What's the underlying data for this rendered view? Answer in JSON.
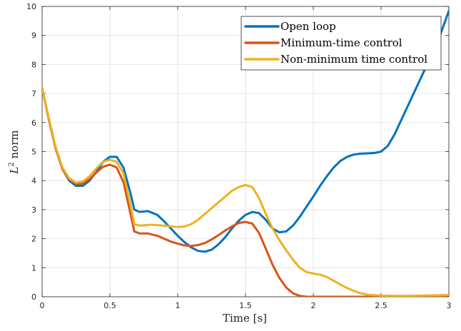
{
  "chart_data": {
    "type": "line",
    "xlabel": "Time [s]",
    "ylabel_main": "L",
    "ylabel_superscript": "2",
    "ylabel_rest": " norm",
    "xlim": [
      0,
      3
    ],
    "ylim": [
      0,
      10
    ],
    "x_ticks": [
      0,
      0.5,
      1,
      1.5,
      2,
      2.5,
      3
    ],
    "x_tick_labels": [
      "0",
      "0.5",
      "1",
      "1.5",
      "2",
      "2.5",
      "3"
    ],
    "y_ticks": [
      0,
      1,
      2,
      3,
      4,
      5,
      6,
      7,
      8,
      9,
      10
    ],
    "y_tick_labels": [
      "0",
      "1",
      "2",
      "3",
      "4",
      "5",
      "6",
      "7",
      "8",
      "9",
      "10"
    ],
    "grid": true,
    "legend_position": "top-right",
    "series": [
      {
        "name": "Open loop",
        "color": "#0072BD",
        "points": [
          [
            0,
            7.2
          ],
          [
            0.05,
            6.1
          ],
          [
            0.1,
            5.1
          ],
          [
            0.15,
            4.4
          ],
          [
            0.2,
            4.0
          ],
          [
            0.25,
            3.82
          ],
          [
            0.3,
            3.82
          ],
          [
            0.35,
            4.0
          ],
          [
            0.4,
            4.3
          ],
          [
            0.45,
            4.65
          ],
          [
            0.5,
            4.82
          ],
          [
            0.55,
            4.82
          ],
          [
            0.6,
            4.45
          ],
          [
            0.65,
            3.6
          ],
          [
            0.68,
            3.0
          ],
          [
            0.72,
            2.92
          ],
          [
            0.78,
            2.95
          ],
          [
            0.85,
            2.82
          ],
          [
            0.9,
            2.6
          ],
          [
            0.95,
            2.35
          ],
          [
            1.0,
            2.1
          ],
          [
            1.05,
            1.88
          ],
          [
            1.1,
            1.7
          ],
          [
            1.15,
            1.58
          ],
          [
            1.2,
            1.55
          ],
          [
            1.25,
            1.62
          ],
          [
            1.3,
            1.8
          ],
          [
            1.35,
            2.05
          ],
          [
            1.4,
            2.35
          ],
          [
            1.45,
            2.62
          ],
          [
            1.5,
            2.82
          ],
          [
            1.55,
            2.92
          ],
          [
            1.6,
            2.88
          ],
          [
            1.65,
            2.65
          ],
          [
            1.7,
            2.35
          ],
          [
            1.75,
            2.22
          ],
          [
            1.8,
            2.25
          ],
          [
            1.85,
            2.45
          ],
          [
            1.9,
            2.75
          ],
          [
            1.95,
            3.1
          ],
          [
            2.0,
            3.45
          ],
          [
            2.05,
            3.82
          ],
          [
            2.1,
            4.15
          ],
          [
            2.15,
            4.45
          ],
          [
            2.2,
            4.68
          ],
          [
            2.25,
            4.82
          ],
          [
            2.3,
            4.9
          ],
          [
            2.35,
            4.93
          ],
          [
            2.4,
            4.94
          ],
          [
            2.45,
            4.95
          ],
          [
            2.5,
            5.0
          ],
          [
            2.55,
            5.2
          ],
          [
            2.6,
            5.6
          ],
          [
            2.65,
            6.1
          ],
          [
            2.7,
            6.6
          ],
          [
            2.75,
            7.1
          ],
          [
            2.8,
            7.6
          ],
          [
            2.85,
            8.1
          ],
          [
            2.9,
            8.6
          ],
          [
            2.95,
            9.2
          ],
          [
            3.0,
            9.85
          ]
        ]
      },
      {
        "name": "Minimum-time control",
        "color": "#D95319",
        "points": [
          [
            0,
            7.2
          ],
          [
            0.05,
            6.1
          ],
          [
            0.1,
            5.1
          ],
          [
            0.15,
            4.4
          ],
          [
            0.2,
            4.05
          ],
          [
            0.25,
            3.88
          ],
          [
            0.3,
            3.9
          ],
          [
            0.35,
            4.05
          ],
          [
            0.4,
            4.28
          ],
          [
            0.45,
            4.48
          ],
          [
            0.5,
            4.55
          ],
          [
            0.55,
            4.45
          ],
          [
            0.6,
            3.95
          ],
          [
            0.65,
            2.9
          ],
          [
            0.68,
            2.25
          ],
          [
            0.72,
            2.18
          ],
          [
            0.78,
            2.18
          ],
          [
            0.85,
            2.1
          ],
          [
            0.9,
            2.0
          ],
          [
            0.95,
            1.9
          ],
          [
            1.0,
            1.83
          ],
          [
            1.05,
            1.77
          ],
          [
            1.1,
            1.75
          ],
          [
            1.15,
            1.78
          ],
          [
            1.2,
            1.85
          ],
          [
            1.25,
            1.97
          ],
          [
            1.3,
            2.12
          ],
          [
            1.35,
            2.28
          ],
          [
            1.4,
            2.42
          ],
          [
            1.45,
            2.54
          ],
          [
            1.5,
            2.58
          ],
          [
            1.55,
            2.52
          ],
          [
            1.6,
            2.2
          ],
          [
            1.65,
            1.65
          ],
          [
            1.7,
            1.1
          ],
          [
            1.75,
            0.65
          ],
          [
            1.8,
            0.32
          ],
          [
            1.85,
            0.12
          ],
          [
            1.9,
            0.03
          ],
          [
            1.95,
            0.0
          ],
          [
            2.0,
            0.0
          ],
          [
            2.5,
            0.0
          ],
          [
            3.0,
            0.0
          ]
        ]
      },
      {
        "name": "Non-minimum time control",
        "color": "#EDB120",
        "points": [
          [
            0,
            7.2
          ],
          [
            0.05,
            6.15
          ],
          [
            0.1,
            5.15
          ],
          [
            0.15,
            4.45
          ],
          [
            0.2,
            4.08
          ],
          [
            0.25,
            3.93
          ],
          [
            0.3,
            3.97
          ],
          [
            0.35,
            4.15
          ],
          [
            0.4,
            4.42
          ],
          [
            0.45,
            4.65
          ],
          [
            0.5,
            4.72
          ],
          [
            0.55,
            4.65
          ],
          [
            0.6,
            4.25
          ],
          [
            0.65,
            3.2
          ],
          [
            0.68,
            2.5
          ],
          [
            0.72,
            2.45
          ],
          [
            0.8,
            2.48
          ],
          [
            0.9,
            2.45
          ],
          [
            1.0,
            2.4
          ],
          [
            1.05,
            2.42
          ],
          [
            1.1,
            2.5
          ],
          [
            1.15,
            2.65
          ],
          [
            1.2,
            2.85
          ],
          [
            1.25,
            3.05
          ],
          [
            1.3,
            3.25
          ],
          [
            1.35,
            3.45
          ],
          [
            1.4,
            3.65
          ],
          [
            1.45,
            3.78
          ],
          [
            1.5,
            3.85
          ],
          [
            1.55,
            3.78
          ],
          [
            1.6,
            3.4
          ],
          [
            1.65,
            2.85
          ],
          [
            1.7,
            2.35
          ],
          [
            1.75,
            1.95
          ],
          [
            1.8,
            1.6
          ],
          [
            1.85,
            1.28
          ],
          [
            1.9,
            1.0
          ],
          [
            1.95,
            0.85
          ],
          [
            2.0,
            0.8
          ],
          [
            2.05,
            0.76
          ],
          [
            2.1,
            0.68
          ],
          [
            2.15,
            0.55
          ],
          [
            2.2,
            0.42
          ],
          [
            2.25,
            0.3
          ],
          [
            2.3,
            0.2
          ],
          [
            2.35,
            0.12
          ],
          [
            2.4,
            0.07
          ],
          [
            2.5,
            0.04
          ],
          [
            2.6,
            0.03
          ],
          [
            2.7,
            0.03
          ],
          [
            2.8,
            0.04
          ],
          [
            2.9,
            0.05
          ],
          [
            3.0,
            0.06
          ]
        ]
      }
    ]
  }
}
